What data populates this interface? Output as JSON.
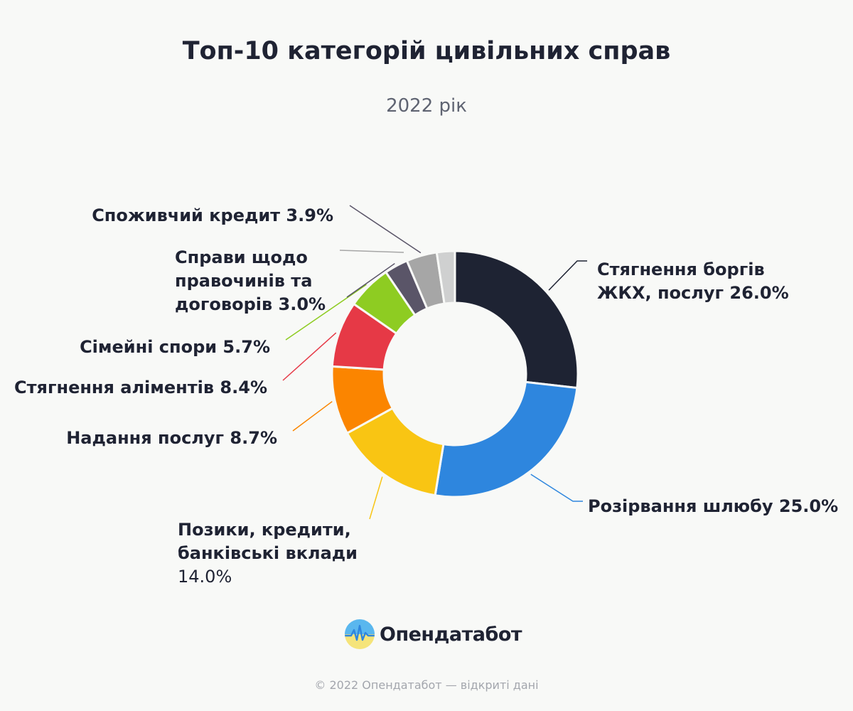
{
  "header": {
    "title": "Топ-10 категорій цивільних справ",
    "subtitle": "2022 рік"
  },
  "chart_data": {
    "type": "pie",
    "title": "Топ-10 категорій цивільних справ",
    "subtitle": "2022 рік",
    "donut": true,
    "unit": "%",
    "slices": [
      {
        "label_lines": [
          "Стягнення боргів",
          "ЖКХ, послуг"
        ],
        "value": 26.0,
        "value_text": "26.0%",
        "color": "#1e2333"
      },
      {
        "label_lines": [
          "Розірвання шлюбу"
        ],
        "value": 25.0,
        "value_text": "25.0%",
        "color": "#2e86de"
      },
      {
        "label_lines": [
          "Позики, кредити,",
          "банківські вклади"
        ],
        "value": 14.0,
        "value_text": "14.0%",
        "color": "#f9c513"
      },
      {
        "label_lines": [
          "Надання послуг"
        ],
        "value": 8.7,
        "value_text": "8.7%",
        "color": "#fb8500"
      },
      {
        "label_lines": [
          "Стягнення аліментів"
        ],
        "value": 8.4,
        "value_text": "8.4%",
        "color": "#e63946"
      },
      {
        "label_lines": [
          "Сімейні спори"
        ],
        "value": 5.7,
        "value_text": "5.7%",
        "color": "#8ecc22"
      },
      {
        "label_lines": [
          "Справи щодо",
          "правочинів та",
          "договорів"
        ],
        "value": 3.0,
        "value_text": "3.0%",
        "color": "#5a5568"
      },
      {
        "label_lines": [
          "Споживчий кредит"
        ],
        "value": 3.9,
        "value_text": "3.9%",
        "color": "#a6a6a6"
      },
      {
        "label_lines": [],
        "value": 2.3,
        "value_text": "",
        "color": "#cfd0d0"
      }
    ]
  },
  "logo": {
    "text": "Опендатабот",
    "icon": "opendatabot-logo-icon"
  },
  "footer": {
    "text": "© 2022 Опендатабот — відкриті дані"
  }
}
